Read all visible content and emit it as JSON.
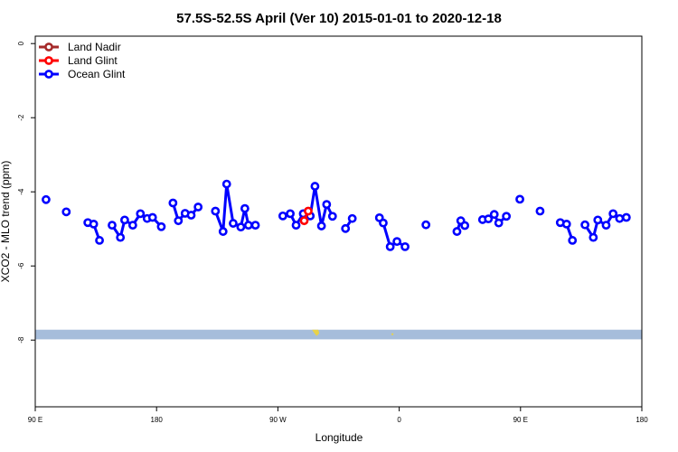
{
  "chart_data": {
    "type": "line",
    "title": "57.5S-52.5S April (Ver 10)   2015-01-01 to 2020-12-18",
    "xlabel": "Longitude",
    "ylabel": "XCO2 - MLO trend (ppm)",
    "xlim": [
      -90,
      180
    ],
    "ylim": [
      -9.8,
      0.2
    ],
    "x_ticks": [
      {
        "value": -90,
        "label": "90 E"
      },
      {
        "value": -36,
        "label": "180"
      },
      {
        "value": 18,
        "label": "90 W"
      },
      {
        "value": 72,
        "label": "0"
      },
      {
        "value": 126,
        "label": "90 E"
      },
      {
        "value": 180,
        "label": "180"
      }
    ],
    "y_ticks": [
      {
        "value": 0,
        "label": "0"
      },
      {
        "value": -2,
        "label": "-2"
      },
      {
        "value": -4,
        "label": "-4"
      },
      {
        "value": -6,
        "label": "-6"
      },
      {
        "value": -8,
        "label": "-8"
      }
    ],
    "legend_position": "top-left",
    "colors": {
      "land_nadir": "#a52a2a",
      "land_glint": "#ff0000",
      "ocean_glint": "#0000ff",
      "map_band": "#a6bddb",
      "land_patch": "#e8d24a"
    },
    "map_band": {
      "y_top": -7.72,
      "y_bottom": -7.98
    },
    "series": [
      {
        "name": "Land Nadir",
        "color": "#a52a2a",
        "segments": []
      },
      {
        "name": "Land Glint",
        "color": "#ff0000",
        "segments": [
          [
            [
              29.7,
              -4.78
            ],
            [
              31.5,
              -4.52
            ]
          ]
        ]
      },
      {
        "name": "Ocean Glint",
        "color": "#0000ff",
        "segments": [
          [
            [
              -85.2,
              -4.21
            ]
          ],
          [
            [
              -76.2,
              -4.54
            ]
          ],
          [
            [
              -66.6,
              -4.83
            ],
            [
              -64.0,
              -4.87
            ],
            [
              -61.4,
              -5.31
            ]
          ],
          [
            [
              -55.8,
              -4.9
            ],
            [
              -52.1,
              -5.23
            ],
            [
              -50.2,
              -4.76
            ],
            [
              -46.6,
              -4.9
            ],
            [
              -43.2,
              -4.59
            ],
            [
              -40.2,
              -4.72
            ],
            [
              -37.8,
              -4.69
            ],
            [
              -33.9,
              -4.94
            ]
          ],
          [
            [
              -28.7,
              -4.3
            ],
            [
              -26.3,
              -4.78
            ],
            [
              -23.3,
              -4.58
            ],
            [
              -20.6,
              -4.63
            ],
            [
              -17.5,
              -4.41
            ]
          ],
          [
            [
              -9.8,
              -4.52
            ],
            [
              -6.4,
              -5.07
            ],
            [
              -4.8,
              -3.79
            ],
            [
              -1.9,
              -4.85
            ],
            [
              1.5,
              -4.95
            ],
            [
              3.3,
              -4.45
            ],
            [
              4.9,
              -4.9
            ],
            [
              8.0,
              -4.9
            ]
          ],
          [
            [
              20.2,
              -4.65
            ],
            [
              23.5,
              -4.59
            ],
            [
              26.1,
              -4.9
            ],
            [
              29.3,
              -4.59
            ],
            [
              32.4,
              -4.65
            ],
            [
              34.5,
              -3.85
            ],
            [
              37.4,
              -4.92
            ],
            [
              39.7,
              -4.34
            ],
            [
              42.3,
              -4.66
            ]
          ],
          [
            [
              48.1,
              -4.99
            ],
            [
              51.1,
              -4.72
            ]
          ],
          [
            [
              63.2,
              -4.7
            ],
            [
              64.9,
              -4.84
            ],
            [
              68.0,
              -5.48
            ],
            [
              71.0,
              -5.34
            ],
            [
              74.6,
              -5.48
            ]
          ],
          [
            [
              83.9,
              -4.89
            ]
          ],
          [
            [
              97.7,
              -5.07
            ],
            [
              99.4,
              -4.78
            ],
            [
              101.2,
              -4.91
            ]
          ],
          [
            [
              109.1,
              -4.75
            ],
            [
              111.7,
              -4.73
            ],
            [
              114.3,
              -4.61
            ],
            [
              116.3,
              -4.84
            ],
            [
              119.7,
              -4.66
            ]
          ],
          [
            [
              125.7,
              -4.2
            ]
          ],
          [
            [
              134.7,
              -4.52
            ]
          ],
          [
            [
              143.7,
              -4.83
            ],
            [
              146.5,
              -4.87
            ],
            [
              149.1,
              -5.31
            ]
          ],
          [
            [
              154.7,
              -4.89
            ],
            [
              158.4,
              -5.23
            ],
            [
              160.4,
              -4.76
            ],
            [
              164.1,
              -4.9
            ],
            [
              167.2,
              -4.59
            ],
            [
              170.1,
              -4.72
            ],
            [
              173.1,
              -4.69
            ]
          ]
        ]
      }
    ]
  }
}
